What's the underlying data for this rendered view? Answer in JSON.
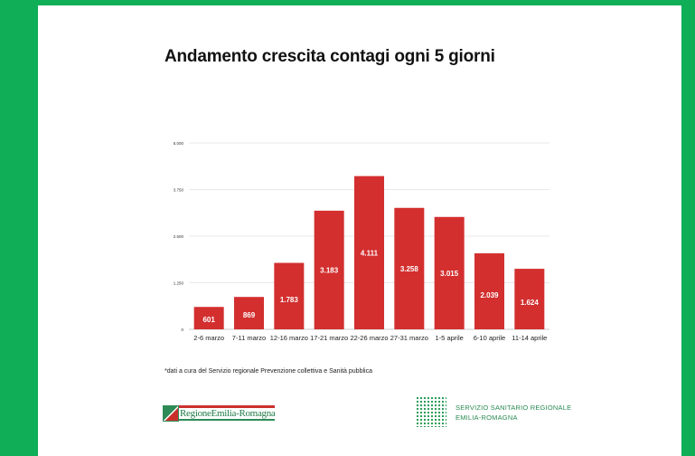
{
  "colors": {
    "background": "#0fae57",
    "bar": "#d32f2f",
    "grid": "#e0e0e0"
  },
  "title": "Andamento crescita contagi ogni 5 giorni",
  "footnote": "*dati a cura del Servizio regionale Prevenzione collettiva e Sanità pubblica",
  "logos": {
    "left_text": "RegioneEmilia-Romagna",
    "right_line1": "SERVIZIO SANITARIO REGIONALE",
    "right_line2": "EMILIA-ROMAGNA"
  },
  "chart_data": {
    "type": "bar",
    "title": "Andamento crescita contagi ogni 5 giorni",
    "xlabel": "",
    "ylabel": "",
    "ylim": [
      0,
      5000
    ],
    "yticks": [
      0,
      1250,
      2500,
      3750,
      5000
    ],
    "ytick_labels": [
      "0",
      "1.250",
      "2.500",
      "3.750",
      "5.000"
    ],
    "grid": true,
    "categories": [
      "2-6 marzo",
      "7-11 marzo",
      "12-16 marzo",
      "17-21 marzo",
      "22-26 marzo",
      "27-31 marzo",
      "1-5 aprile",
      "6-10 aprile",
      "11-14 aprile"
    ],
    "values": [
      601,
      869,
      1783,
      3183,
      4111,
      3258,
      3015,
      2039,
      1624
    ],
    "value_labels": [
      "601",
      "869",
      "1.783",
      "3.183",
      "4.111",
      "3.258",
      "3.015",
      "2.039",
      "1.624"
    ]
  }
}
